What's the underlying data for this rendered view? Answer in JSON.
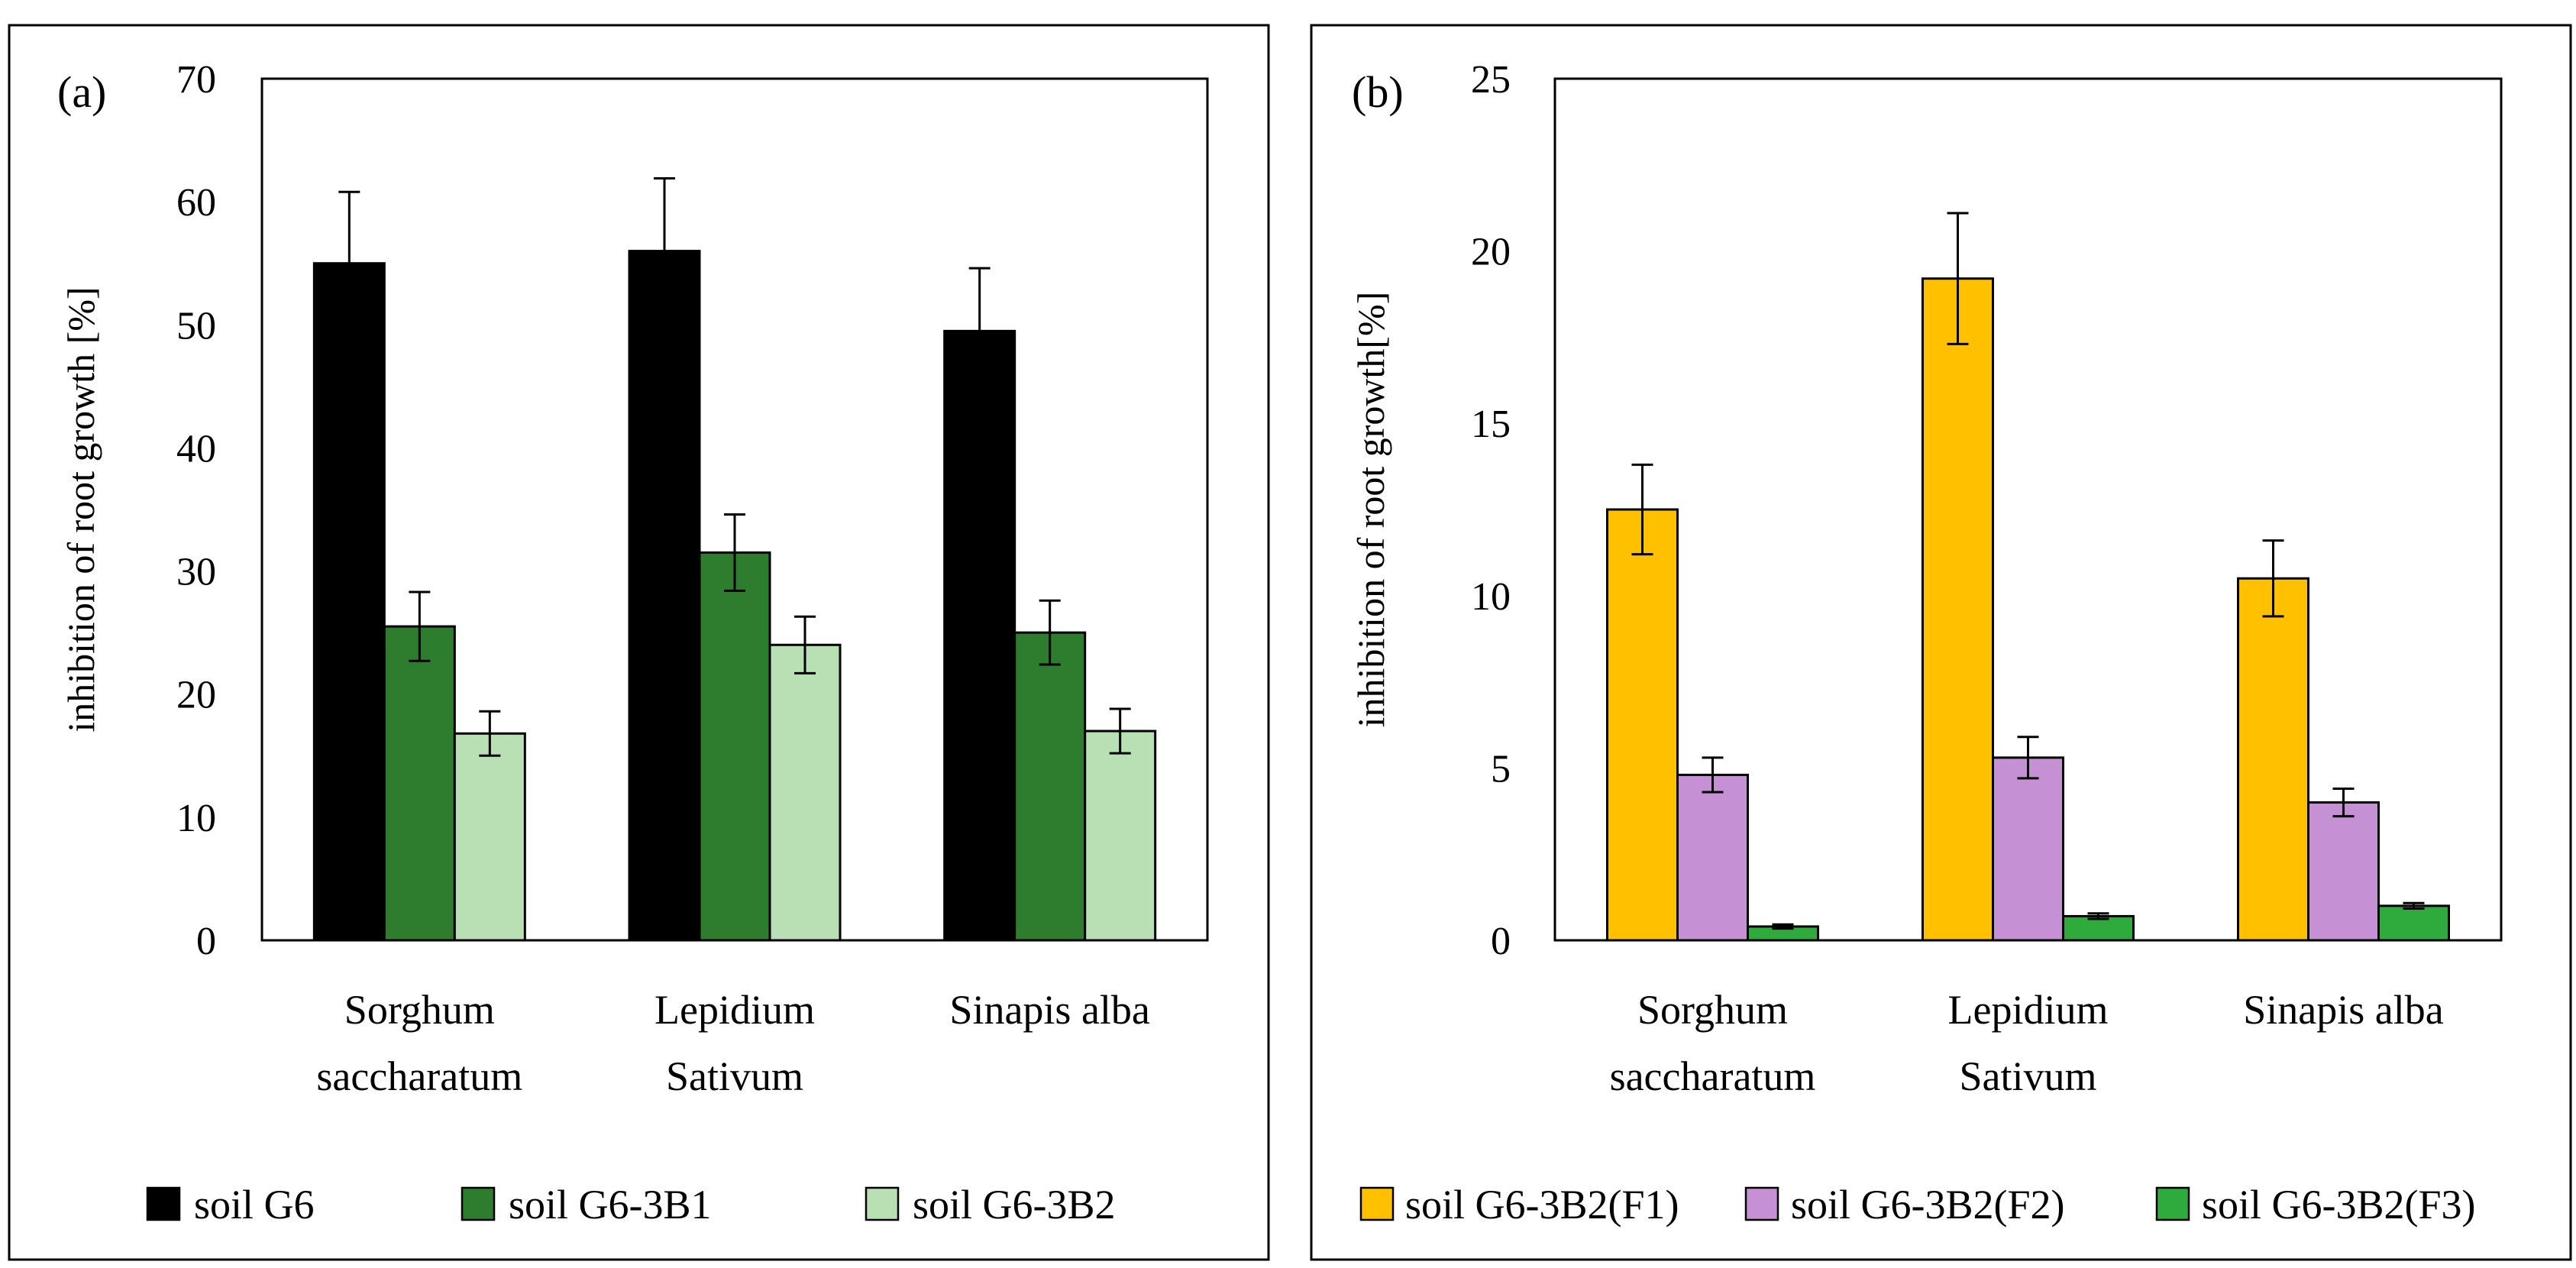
{
  "chart_data": [
    {
      "type": "bar",
      "panel_label": "(a)",
      "title": "",
      "xlabel": "",
      "ylabel": "inhibition of root growth [%]",
      "ylim": [
        0,
        70
      ],
      "yticks": [
        0,
        10,
        20,
        30,
        40,
        50,
        60,
        70
      ],
      "categories": [
        [
          "Sorghum",
          "saccharatum"
        ],
        [
          "Lepidium",
          "Sativum"
        ],
        [
          "Sinapis alba"
        ]
      ],
      "series": [
        {
          "name": "soil G6",
          "color": "#000000",
          "values": [
            55.0,
            56.0,
            49.5
          ],
          "errors": [
            5.8,
            5.9,
            5.1
          ]
        },
        {
          "name": "soil G6-3B1",
          "color": "#2e7d2e",
          "values": [
            25.5,
            31.5,
            25.0
          ],
          "errors": [
            2.8,
            3.1,
            2.6
          ]
        },
        {
          "name": "soil G6-3B2",
          "color": "#b9e0b5",
          "values": [
            16.8,
            24.0,
            17.0
          ],
          "errors": [
            1.8,
            2.3,
            1.8
          ]
        }
      ],
      "legend_position": "bottom"
    },
    {
      "type": "bar",
      "panel_label": "(b)",
      "title": "",
      "xlabel": "",
      "ylabel": "inhibition of root growth[%]",
      "ylim": [
        0,
        25
      ],
      "yticks": [
        0,
        5,
        10,
        15,
        20,
        25
      ],
      "categories": [
        [
          "Sorghum",
          "saccharatum"
        ],
        [
          "Lepidium",
          "Sativum"
        ],
        [
          "Sinapis alba"
        ]
      ],
      "series": [
        {
          "name": "soil G6-3B2(F1)",
          "color": "#ffc000",
          "values": [
            12.5,
            19.2,
            10.5
          ],
          "errors": [
            1.3,
            1.9,
            1.1
          ]
        },
        {
          "name": "soil G6-3B2(F2)",
          "color": "#c590d4",
          "values": [
            4.8,
            5.3,
            4.0
          ],
          "errors": [
            0.5,
            0.6,
            0.4
          ]
        },
        {
          "name": "soil G6-3B2(F3)",
          "color": "#2eab3c",
          "values": [
            0.4,
            0.7,
            1.0
          ],
          "errors": [
            0.06,
            0.08,
            0.08
          ]
        }
      ],
      "legend_position": "bottom"
    }
  ]
}
